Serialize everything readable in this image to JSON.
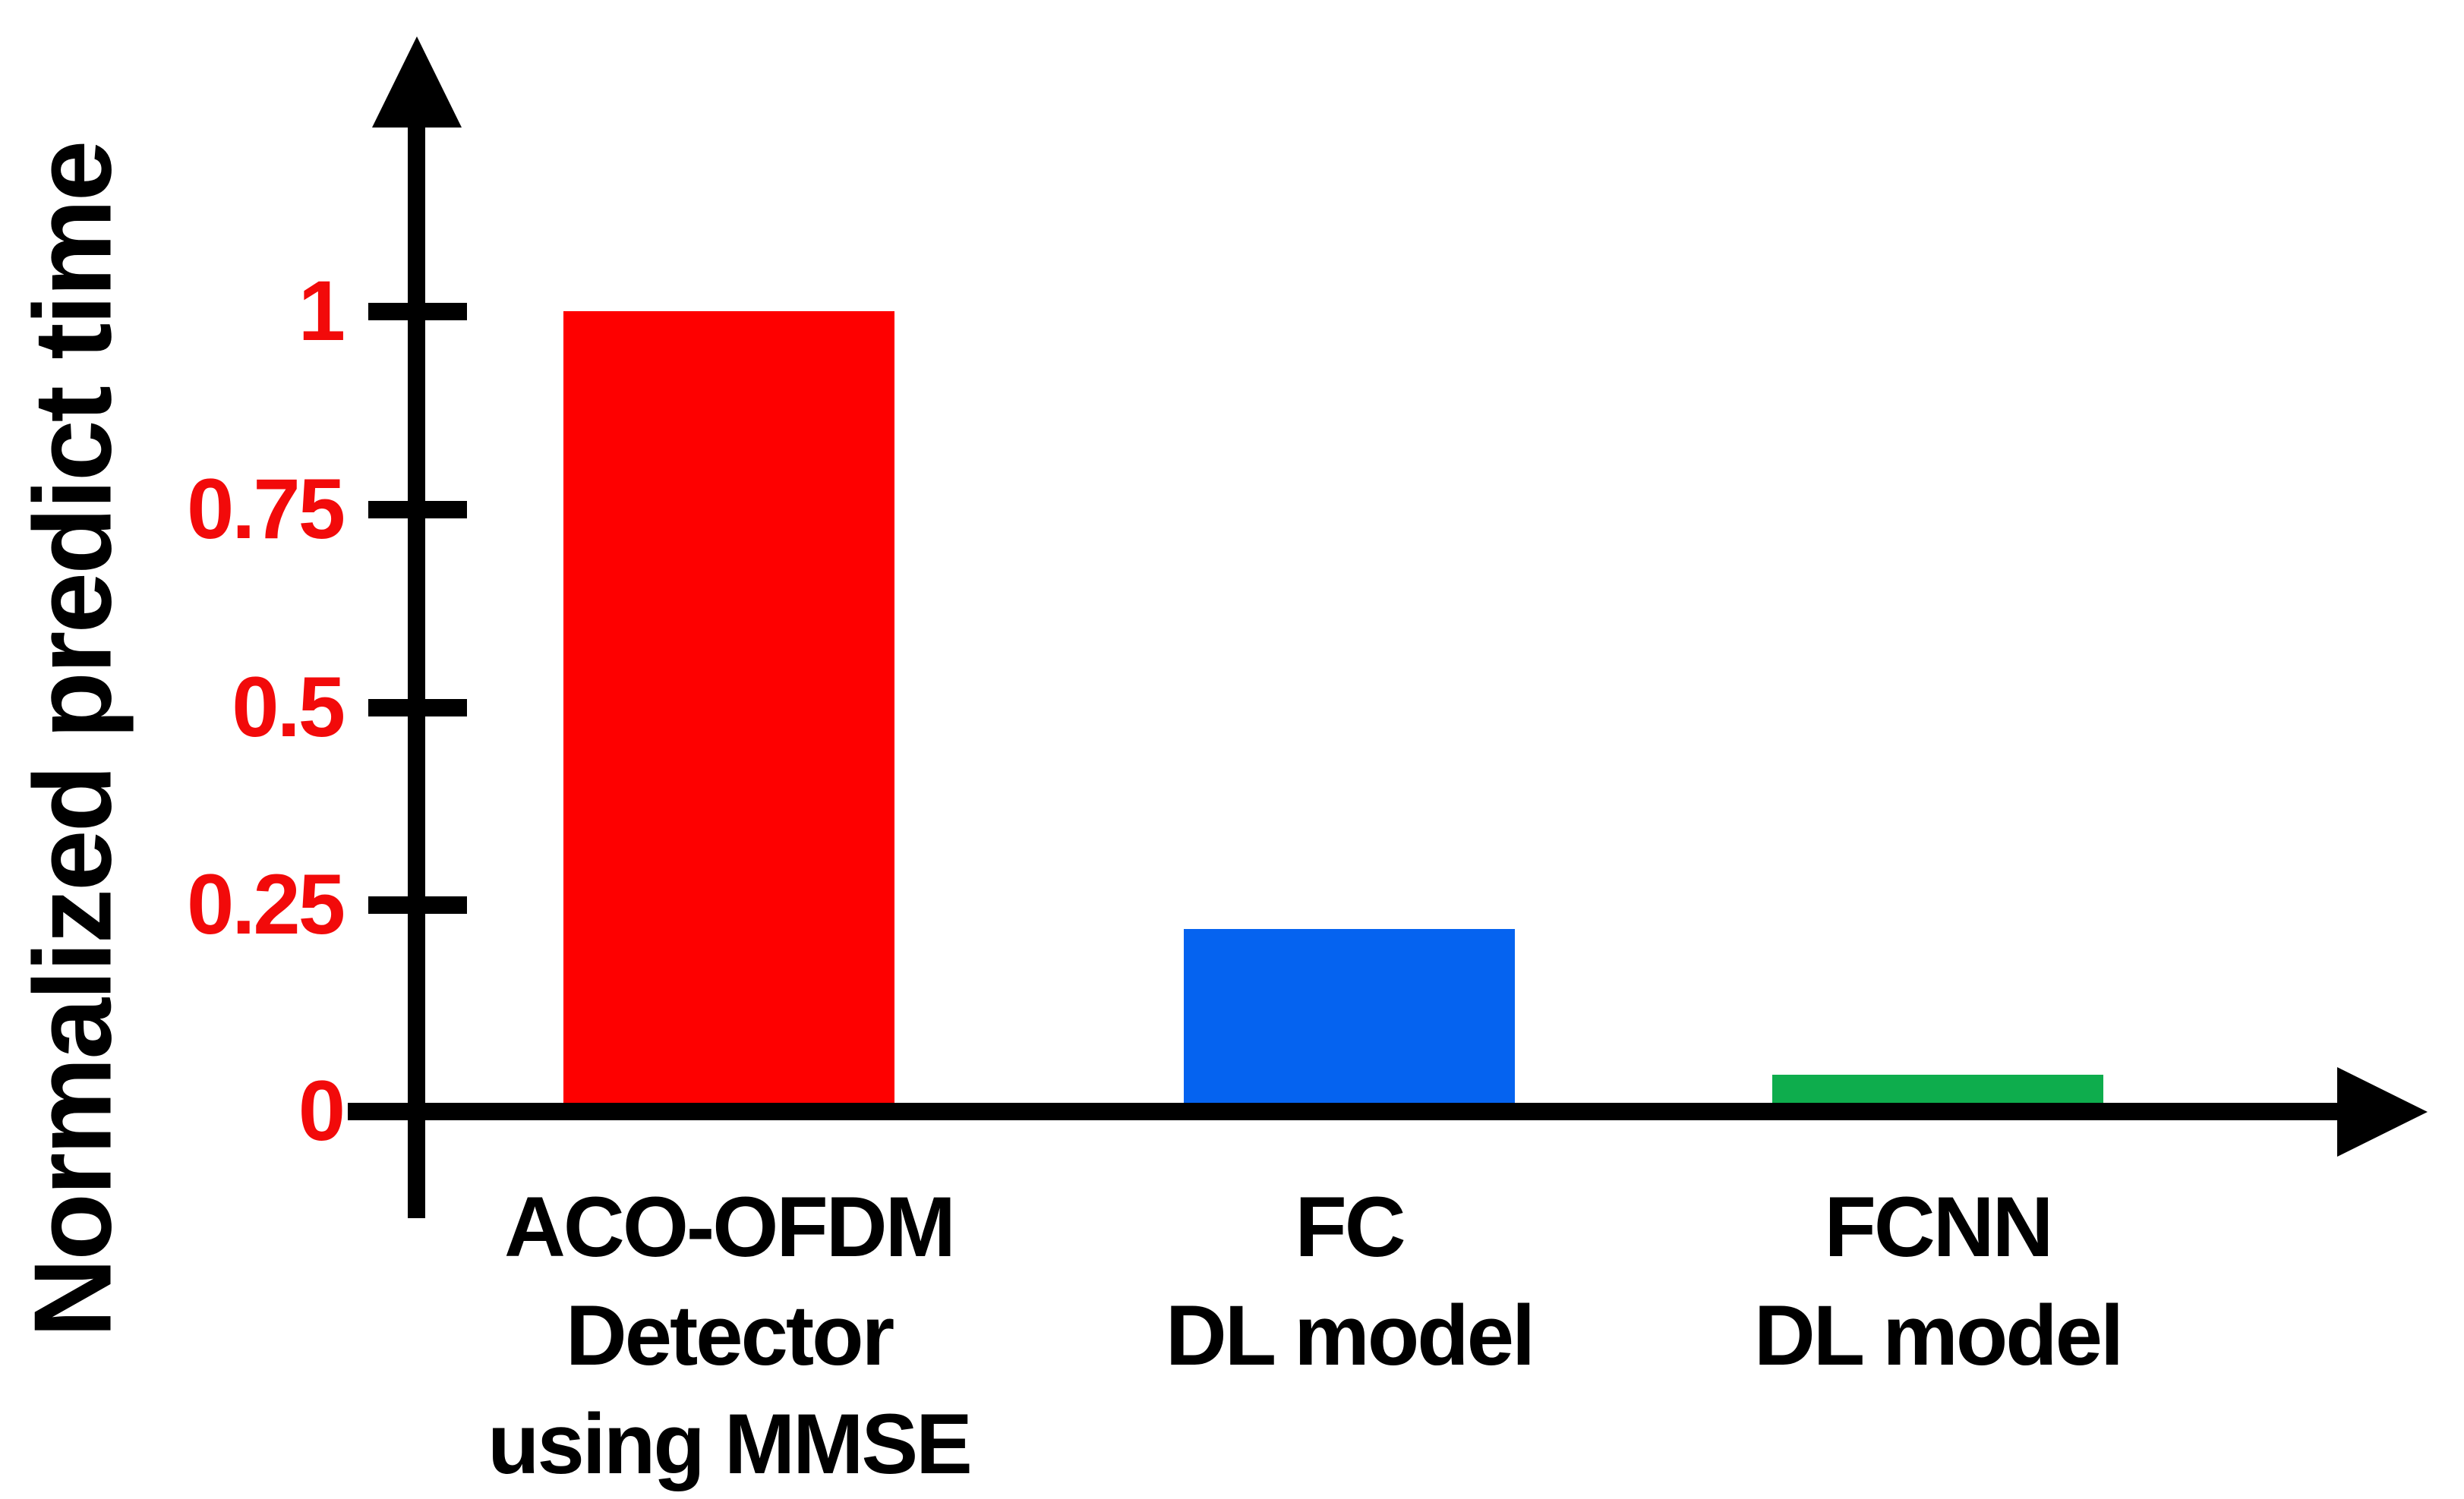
{
  "chart_data": {
    "type": "bar",
    "title": "",
    "xlabel": "",
    "ylabel": "Normalized predict time",
    "ylim": [
      0,
      1.25
    ],
    "grid": false,
    "legend": null,
    "categories": [
      "ACO-OFDM Detector using MMSE",
      "FC DL model",
      "FCNN DL model"
    ],
    "values": [
      1.0,
      0.22,
      0.035
    ],
    "bar_colors": [
      "#fe0000",
      "#0563f0",
      "#0ead4d"
    ],
    "y_ticks": [
      0,
      0.25,
      0.5,
      0.75,
      1
    ]
  },
  "y_axis": {
    "label": "Normalized predict time",
    "tick_label_color": "#f20a0a",
    "axis_color": "#000000",
    "ticks": [
      {
        "label": "1",
        "value": 1.0
      },
      {
        "label": "0.75",
        "value": 0.75
      },
      {
        "label": "0.5",
        "value": 0.5
      },
      {
        "label": "0.25",
        "value": 0.25
      },
      {
        "label": "0",
        "value": 0
      }
    ]
  },
  "bars": [
    {
      "name": "aco-ofdm-detector-mmse",
      "label": "ACO-OFDM\nDetector\nusing MMSE",
      "value": 1.0,
      "color": "#fe0000"
    },
    {
      "name": "fc-dl-model",
      "label": "FC\nDL model",
      "value": 0.22,
      "color": "#0563f0"
    },
    {
      "name": "fcnn-dl-model",
      "label": "FCNN\nDL model",
      "value": 0.035,
      "color": "#0ead4d"
    }
  ]
}
